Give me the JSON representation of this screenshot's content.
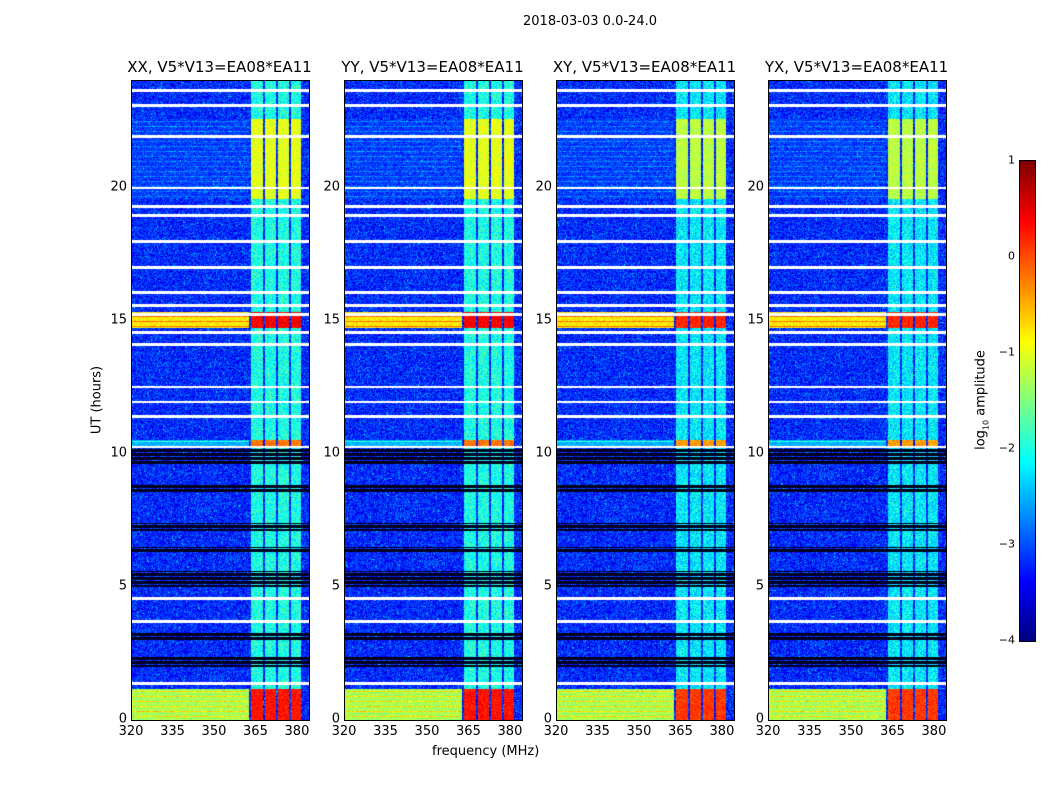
{
  "chart_data": {
    "type": "heatmap",
    "title": "2018-03-03 0.0-24.0",
    "xlabel": "frequency (MHz)",
    "ylabel": "UT (hours)",
    "xlim": [
      320,
      384
    ],
    "ylim": [
      0,
      24
    ],
    "xticks": [
      "320",
      "335",
      "350",
      "365",
      "380"
    ],
    "xtick_values": [
      320,
      335,
      350,
      365,
      380
    ],
    "yticks": [
      "0",
      "5",
      "10",
      "15",
      "20"
    ],
    "ytick_values": [
      0,
      5,
      10,
      15,
      20
    ],
    "panels": [
      {
        "title": "XX, V5*V13=EA08*EA11"
      },
      {
        "title": "YY, V5*V13=EA08*EA11"
      },
      {
        "title": "XY, V5*V13=EA08*EA11"
      },
      {
        "title": "YX, V5*V13=EA08*EA11"
      }
    ],
    "colorbar": {
      "label_main": "log",
      "label_sub": "10",
      "label_rest": " amplitude",
      "range": [
        -4,
        1
      ],
      "ticks": [
        "1",
        "0",
        "−1",
        "−2",
        "−3",
        "−4"
      ],
      "tick_values": [
        1,
        0,
        -1,
        -2,
        -3,
        -4
      ],
      "colormap": "jet"
    },
    "background_level": -3.2,
    "rfi_channels_mhz": [
      [
        363,
        367.3
      ],
      [
        368,
        372
      ],
      [
        372.6,
        376.7
      ],
      [
        377.3,
        381
      ]
    ],
    "flagged_hours": [
      23.65,
      23.09,
      21.93,
      20.0,
      19.3,
      18.97,
      17.99,
      17.02,
      16.08,
      15.59,
      15.25,
      14.58,
      14.13,
      12.52,
      11.96,
      11.43,
      10.27,
      4.57,
      3.71,
      1.39
    ],
    "dropout_hours": [
      [
        9.6,
        10.2
      ],
      [
        7.1,
        7.4
      ],
      [
        6.3,
        6.5
      ],
      [
        5.0,
        5.6
      ],
      [
        3.0,
        3.3
      ],
      [
        2.0,
        2.4
      ],
      [
        8.6,
        8.9
      ]
    ],
    "events": [
      {
        "hours": [
          0,
          1.2
        ],
        "channel_level": 0.3,
        "broadband_level": -1.3
      },
      {
        "hours": [
          14.75,
          15.35
        ],
        "channel_level": 0.4,
        "broadband_level": -0.8
      },
      {
        "hours": [
          10.3,
          10.55
        ],
        "channel_level": -0.2,
        "broadband_level": -2.5
      },
      {
        "hours": [
          19.6,
          22.6
        ],
        "channel_level": -1.0,
        "broadband_level": -3.2
      }
    ]
  }
}
